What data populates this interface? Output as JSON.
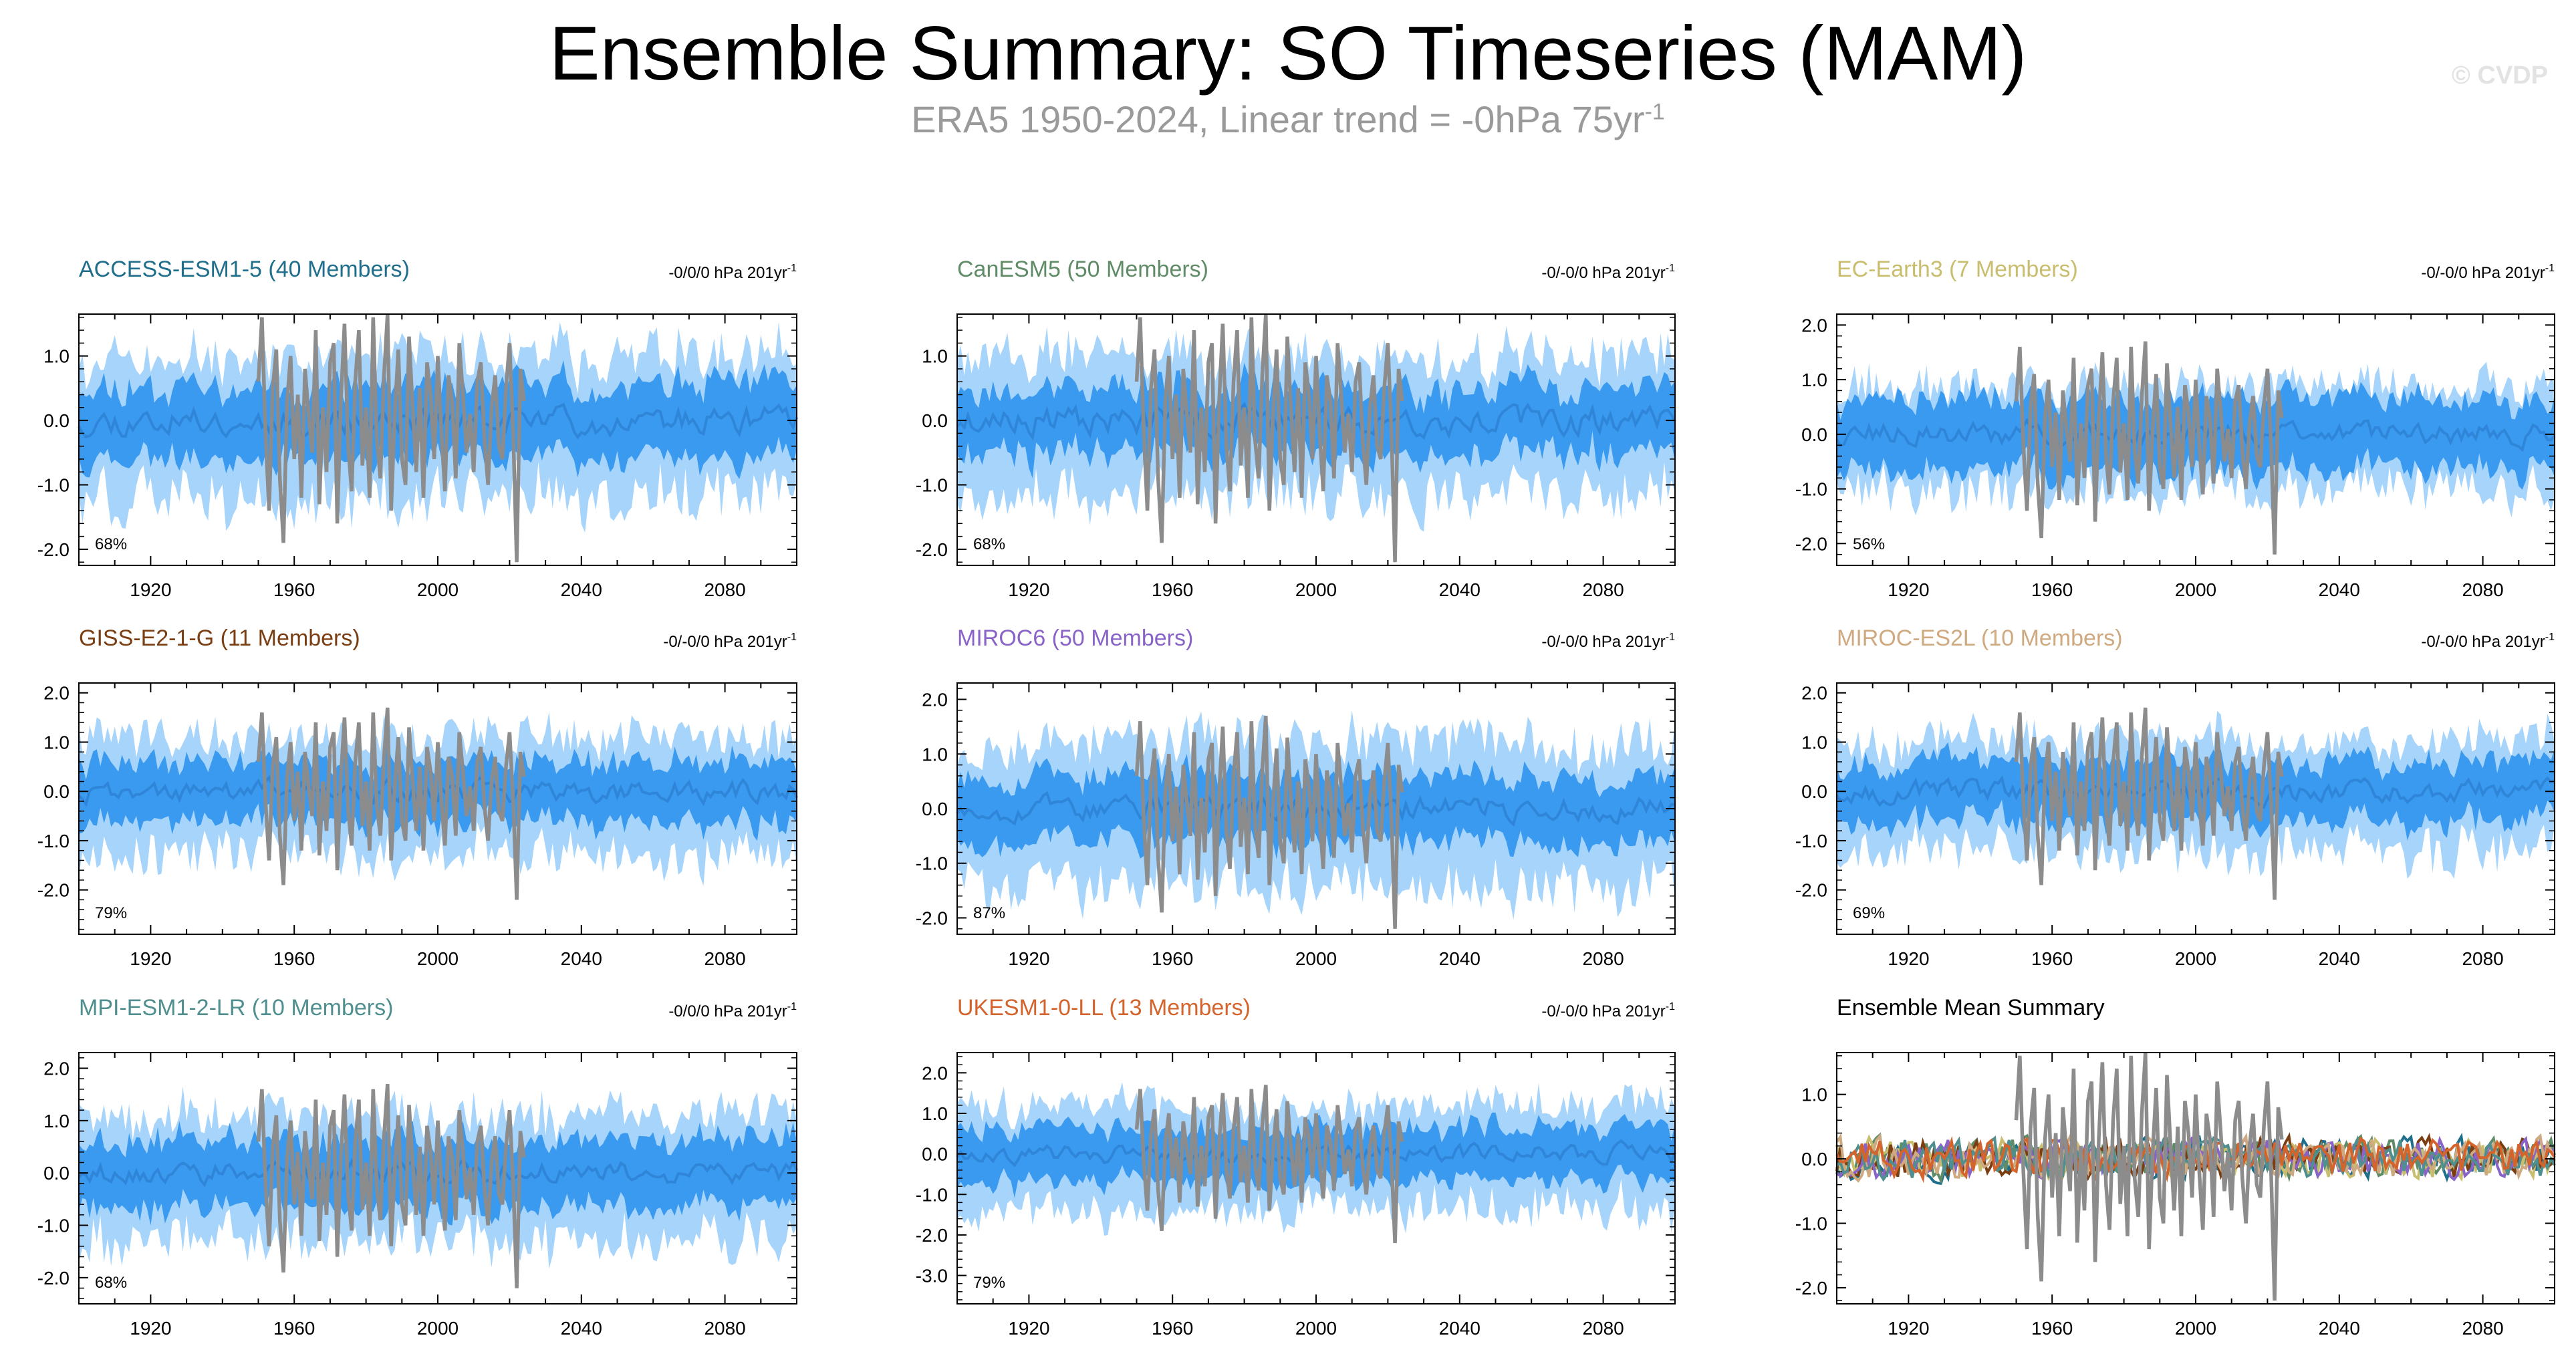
{
  "header": {
    "title": "Ensemble Summary: SO Timeseries (MAM)",
    "subtitle_main": "ERA5 1950-2024, Linear trend = -0hPa 75yr",
    "subtitle_sup": "-1",
    "watermark": "© CVDP"
  },
  "chart_data": [
    {
      "type": "area",
      "title": "ACCESS-ESM1-5 (40 Members)",
      "title_color": "#1f6e8c",
      "trend_label": "-0/0/0 hPa 201yr",
      "trend_sup": "-1",
      "percent": "68%",
      "y_ticks": [
        "1.0",
        "0.0",
        "-1.0",
        "-2.0"
      ],
      "ylim": [
        -2.25,
        1.65
      ],
      "x_ticks": [
        "1920",
        "1960",
        "2000",
        "2040",
        "2080"
      ],
      "xlim": [
        1900,
        2100
      ],
      "seed": 11,
      "amp_dark": 0.55,
      "amp_light": 0.95
    },
    {
      "type": "area",
      "title": "CanESM5 (50 Members)",
      "title_color": "#5f8c66",
      "trend_label": "-0/-0/0 hPa 201yr",
      "trend_sup": "-1",
      "percent": "68%",
      "y_ticks": [
        "1.0",
        "0.0",
        "-1.0",
        "-2.0"
      ],
      "ylim": [
        -2.25,
        1.65
      ],
      "x_ticks": [
        "1920",
        "1960",
        "2000",
        "2040",
        "2080"
      ],
      "xlim": [
        1900,
        2100
      ],
      "seed": 23,
      "amp_dark": 0.5,
      "amp_light": 0.95
    },
    {
      "type": "area",
      "title": "EC-Earth3 (7 Members)",
      "title_color": "#c9bd6e",
      "trend_label": "-0/-0/0 hPa 201yr",
      "trend_sup": "-1",
      "percent": "56%",
      "y_ticks": [
        "2.0",
        "1.0",
        "0.0",
        "-1.0",
        "-2.0"
      ],
      "ylim": [
        -2.4,
        2.2
      ],
      "x_ticks": [
        "1920",
        "1960",
        "2000",
        "2040",
        "2080"
      ],
      "xlim": [
        1900,
        2100
      ],
      "seed": 37,
      "amp_dark": 0.65,
      "amp_light": 0.85
    },
    {
      "type": "area",
      "title": "GISS-E2-1-G (11 Members)",
      "title_color": "#7a3e12",
      "trend_label": "-0/-0/0 hPa 201yr",
      "trend_sup": "-1",
      "percent": "79%",
      "y_ticks": [
        "2.0",
        "1.0",
        "0.0",
        "-1.0",
        "-2.0"
      ],
      "ylim": [
        -2.9,
        2.2
      ],
      "x_ticks": [
        "1920",
        "1960",
        "2000",
        "2040",
        "2080"
      ],
      "xlim": [
        1900,
        2100
      ],
      "seed": 41,
      "amp_dark": 0.6,
      "amp_light": 1.05
    },
    {
      "type": "area",
      "title": "MIROC6 (50 Members)",
      "title_color": "#8a63c9",
      "trend_label": "-0/-0/0 hPa 201yr",
      "trend_sup": "-1",
      "percent": "87%",
      "y_ticks": [
        "2.0",
        "1.0",
        "0.0",
        "-1.0",
        "-2.0"
      ],
      "ylim": [
        -2.3,
        2.3
      ],
      "x_ticks": [
        "1920",
        "1960",
        "2000",
        "2040",
        "2080"
      ],
      "xlim": [
        1900,
        2100
      ],
      "seed": 53,
      "amp_dark": 0.6,
      "amp_light": 1.15
    },
    {
      "type": "area",
      "title": "MIROC-ES2L (10 Members)",
      "title_color": "#cfa97f",
      "trend_label": "-0/-0/0 hPa 201yr",
      "trend_sup": "-1",
      "percent": "69%",
      "y_ticks": [
        "2.0",
        "1.0",
        "0.0",
        "-1.0",
        "-2.0"
      ],
      "ylim": [
        -2.9,
        2.2
      ],
      "x_ticks": [
        "1920",
        "1960",
        "2000",
        "2040",
        "2080"
      ],
      "xlim": [
        1900,
        2100
      ],
      "seed": 67,
      "amp_dark": 0.6,
      "amp_light": 1.0
    },
    {
      "type": "area",
      "title": "MPI-ESM1-2-LR (10 Members)",
      "title_color": "#4f8f8f",
      "trend_label": "-0/0/0 hPa 201yr",
      "trend_sup": "-1",
      "percent": "68%",
      "y_ticks": [
        "2.0",
        "1.0",
        "0.0",
        "-1.0",
        "-2.0"
      ],
      "ylim": [
        -2.5,
        2.3
      ],
      "x_ticks": [
        "1920",
        "1960",
        "2000",
        "2040",
        "2080"
      ],
      "xlim": [
        1900,
        2100
      ],
      "seed": 79,
      "amp_dark": 0.65,
      "amp_light": 1.05
    },
    {
      "type": "area",
      "title": "UKESM1-0-LL (13 Members)",
      "title_color": "#d5642c",
      "trend_label": "-0/-0/0 hPa 201yr",
      "trend_sup": "-1",
      "percent": "79%",
      "y_ticks": [
        "2.0",
        "1.0",
        "0.0",
        "-1.0",
        "-2.0",
        "-3.0"
      ],
      "ylim": [
        -3.7,
        2.5
      ],
      "x_ticks": [
        "1920",
        "1960",
        "2000",
        "2040",
        "2080"
      ],
      "xlim": [
        1900,
        2100
      ],
      "seed": 83,
      "amp_dark": 0.65,
      "amp_light": 1.15
    },
    {
      "type": "line",
      "title": "Ensemble Mean Summary",
      "title_color": "#000000",
      "trend_label": "",
      "trend_sup": "",
      "percent": "",
      "y_ticks": [
        "1.0",
        "0.0",
        "-1.0",
        "-2.0"
      ],
      "ylim": [
        -2.25,
        1.65
      ],
      "x_ticks": [
        "1920",
        "1960",
        "2000",
        "2040",
        "2080"
      ],
      "xlim": [
        1900,
        2100
      ],
      "seed": 97,
      "amp_dark": 0.25,
      "amp_light": 0.0,
      "series_colors": [
        "#1f6e8c",
        "#5f8c66",
        "#c9bd6e",
        "#7a3e12",
        "#8a63c9",
        "#cfa97f",
        "#4f8f8f",
        "#d5642c"
      ]
    }
  ],
  "observations": {
    "name": "ERA5",
    "color": "#8c8c8c",
    "start_year": 1950,
    "values": [
      0.6,
      1.6,
      -0.2,
      -1.4,
      0.5,
      1.1,
      -0.9,
      -1.9,
      0.3,
      1.0,
      -0.6,
      0.4,
      -1.2,
      0.8,
      0.1,
      -0.5,
      1.4,
      -1.3,
      0.2,
      -0.8,
      0.9,
      1.2,
      -1.6,
      0.3,
      1.5,
      -0.4,
      -1.1,
      0.6,
      1.4,
      -0.7,
      0.2,
      -1.2,
      1.6,
      -0.3,
      -0.9,
      0.7,
      1.7,
      -1.4,
      0.1,
      1.1,
      -0.6,
      -1.0,
      1.3,
      0.2,
      -0.8,
      0.5,
      -1.2,
      0.9,
      0.4,
      -0.6,
      1.0,
      -0.2,
      -1.1,
      0.7,
      0.3,
      -0.9,
      1.2,
      0.4,
      -0.5,
      0.1,
      -0.8,
      0.6,
      0.9,
      -0.3,
      -1.0,
      0.2,
      0.7,
      -0.4,
      -0.6,
      0.5,
      1.2,
      -0.2,
      -2.2,
      0.8,
      0.3
    ]
  }
}
